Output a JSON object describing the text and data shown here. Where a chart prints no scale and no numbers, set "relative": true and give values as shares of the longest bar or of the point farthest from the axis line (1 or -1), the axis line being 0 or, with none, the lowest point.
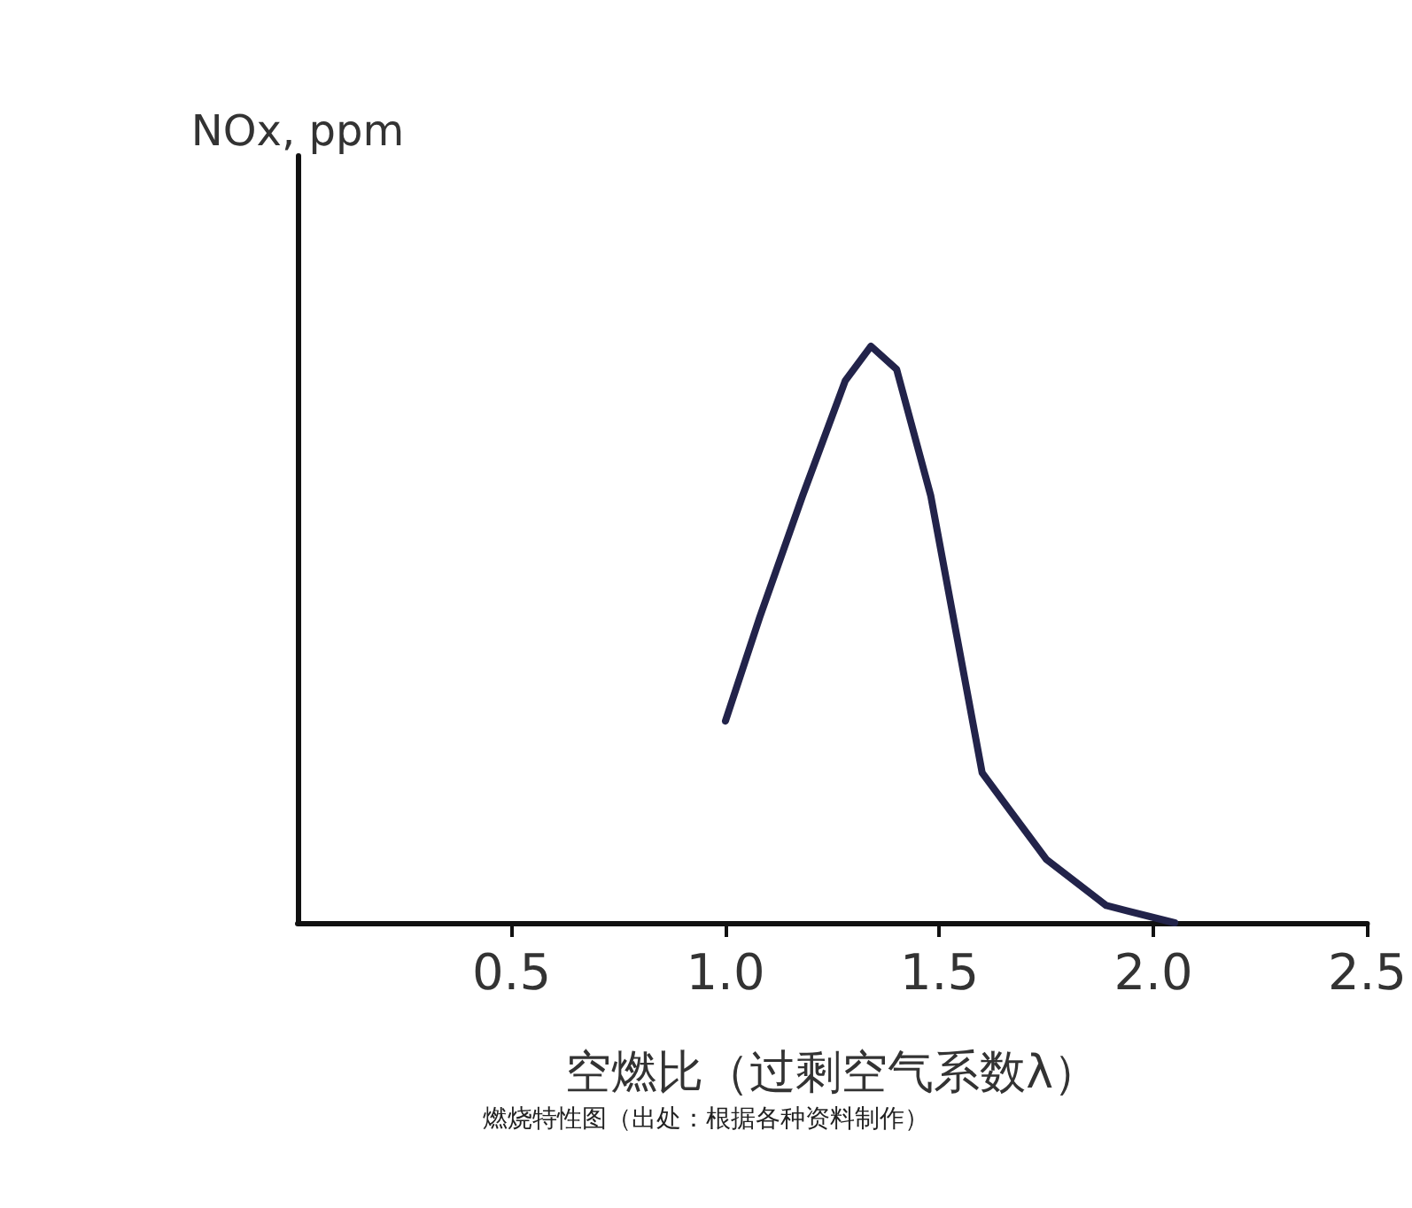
{
  "chart_data": {
    "type": "line",
    "relative": true,
    "ylabel": "NOx, ppm",
    "xlabel": "空燃比（过剩空气系数λ）",
    "annotations": [
      "燃烧特性图（出处：根据各种资料制作）"
    ],
    "xlim": [
      0,
      2.5
    ],
    "xticks": [
      {
        "value": 0.5,
        "label": "0.5"
      },
      {
        "value": 1,
        "label": "1.0"
      },
      {
        "value": 1.5,
        "label": "1.5"
      },
      {
        "value": 2,
        "label": "2.0"
      },
      {
        "value": 2.5,
        "label": "2.5"
      }
    ],
    "series": [
      {
        "color": "#22234a",
        "x": [
          1.0,
          1.08,
          1.18,
          1.28,
          1.34,
          1.4,
          1.48,
          1.54,
          1.6,
          1.67,
          1.75,
          1.89,
          2.05
        ],
        "values": [
          0.35,
          0.53,
          0.74,
          0.94,
          1.0,
          0.96,
          0.74,
          0.5,
          0.26,
          0.19,
          0.11,
          0.03,
          0.0
        ]
      }
    ],
    "marker": "none",
    "grid": false
  }
}
